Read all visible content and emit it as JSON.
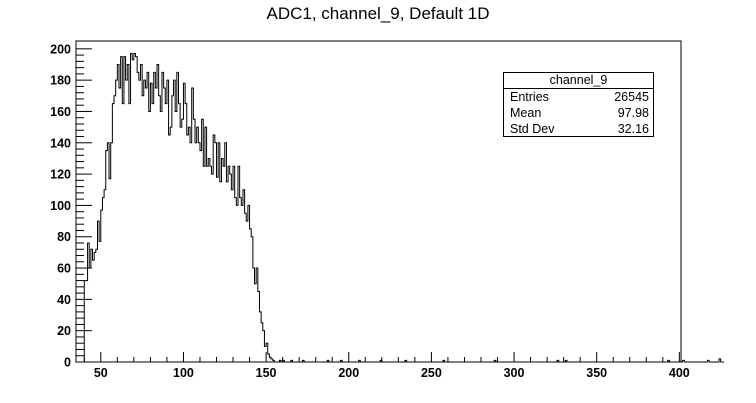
{
  "page": {
    "title": "ADC1, channel_9, Default 1D"
  },
  "stats": {
    "name": "channel_9",
    "rows": [
      {
        "label": "Entries",
        "value": "26545"
      },
      {
        "label": "Mean",
        "value": "97.98"
      },
      {
        "label": "Std Dev",
        "value": "32.16"
      }
    ]
  },
  "colors": {
    "line": "#000000",
    "background": "#ffffff"
  },
  "chart_data": {
    "type": "bar",
    "style": "step-histogram",
    "title": "ADC1, channel_9, Default 1D",
    "xlabel": "",
    "ylabel": "",
    "xlim": [
      35,
      401
    ],
    "ylim": [
      0,
      205
    ],
    "xticks": [
      50,
      100,
      150,
      200,
      250,
      300,
      350,
      400
    ],
    "yticks": [
      0,
      20,
      40,
      60,
      80,
      100,
      120,
      140,
      160,
      180,
      200
    ],
    "grid": false,
    "legend": "none",
    "bin_start": 40,
    "bin_width": 1,
    "values": [
      52,
      52,
      76,
      60,
      72,
      65,
      70,
      72,
      90,
      77,
      97,
      105,
      110,
      135,
      140,
      117,
      140,
      165,
      170,
      180,
      190,
      175,
      195,
      165,
      195,
      180,
      190,
      165,
      197,
      193,
      197,
      195,
      185,
      180,
      190,
      170,
      180,
      175,
      185,
      160,
      178,
      165,
      185,
      175,
      190,
      170,
      160,
      185,
      175,
      165,
      180,
      145,
      150,
      170,
      180,
      160,
      185,
      165,
      150,
      155,
      178,
      165,
      145,
      150,
      140,
      175,
      155,
      140,
      150,
      140,
      135,
      155,
      125,
      150,
      125,
      130,
      125,
      120,
      145,
      140,
      118,
      140,
      115,
      130,
      125,
      140,
      115,
      125,
      120,
      110,
      125,
      105,
      100,
      125,
      105,
      100,
      110,
      95,
      90,
      100,
      85,
      80,
      60,
      50,
      60,
      45,
      32,
      25,
      20,
      10,
      12,
      5,
      3,
      2,
      1,
      0,
      0,
      0,
      1,
      0,
      1,
      0,
      0,
      0,
      0,
      1,
      0,
      0,
      0,
      0,
      0,
      0,
      1,
      0,
      0,
      0,
      0,
      0,
      0,
      0,
      0,
      0,
      0,
      0,
      0,
      0,
      0,
      1,
      0,
      0,
      0,
      0,
      0,
      0,
      0,
      1,
      0,
      0,
      0,
      0,
      0,
      0,
      0,
      0,
      0,
      0,
      1,
      0,
      0,
      0,
      0,
      0,
      0,
      0,
      0,
      0,
      0,
      0,
      0,
      1,
      0,
      0,
      0,
      0,
      0,
      0,
      0,
      0,
      0,
      0,
      0,
      0,
      0,
      0,
      1,
      0,
      0,
      0,
      0,
      0,
      0,
      0,
      0,
      0,
      0,
      0,
      0,
      0,
      0,
      0,
      0,
      0,
      0,
      0,
      0,
      0,
      0,
      1,
      0,
      0,
      0,
      0,
      0,
      0,
      0,
      0,
      0,
      0,
      0,
      0,
      0,
      0,
      0,
      0,
      0,
      0,
      0,
      0,
      0,
      0,
      0,
      0,
      0,
      0,
      0,
      0,
      0,
      0,
      1,
      0,
      0,
      0,
      0,
      0,
      0,
      0,
      0,
      0,
      0,
      0,
      0,
      0,
      0,
      0,
      0,
      0,
      0,
      0,
      0,
      0,
      0,
      0,
      0,
      0,
      0,
      0,
      0,
      0,
      0,
      0,
      0,
      0,
      0,
      0,
      0,
      0,
      1,
      0,
      0,
      0,
      0,
      1,
      0,
      0,
      0,
      0,
      0,
      0,
      0,
      0,
      0,
      0,
      0,
      0,
      0,
      0,
      0,
      0,
      0,
      0,
      0,
      0,
      0,
      0,
      0,
      0,
      0,
      0,
      0,
      0,
      0,
      0,
      0,
      0,
      0,
      0,
      0,
      0,
      0,
      0,
      0,
      0,
      0,
      0,
      0,
      0,
      0,
      0,
      0,
      0,
      0,
      0,
      0,
      0,
      0,
      0,
      0,
      0,
      0,
      0,
      0,
      0,
      0,
      1,
      0,
      0,
      0,
      0,
      0,
      0,
      0,
      0,
      1,
      0,
      0,
      0,
      0,
      0,
      0,
      0,
      0,
      0,
      0,
      0,
      0,
      0,
      0,
      1,
      0,
      0,
      0,
      0,
      0,
      0,
      2,
      0,
      0
    ]
  }
}
